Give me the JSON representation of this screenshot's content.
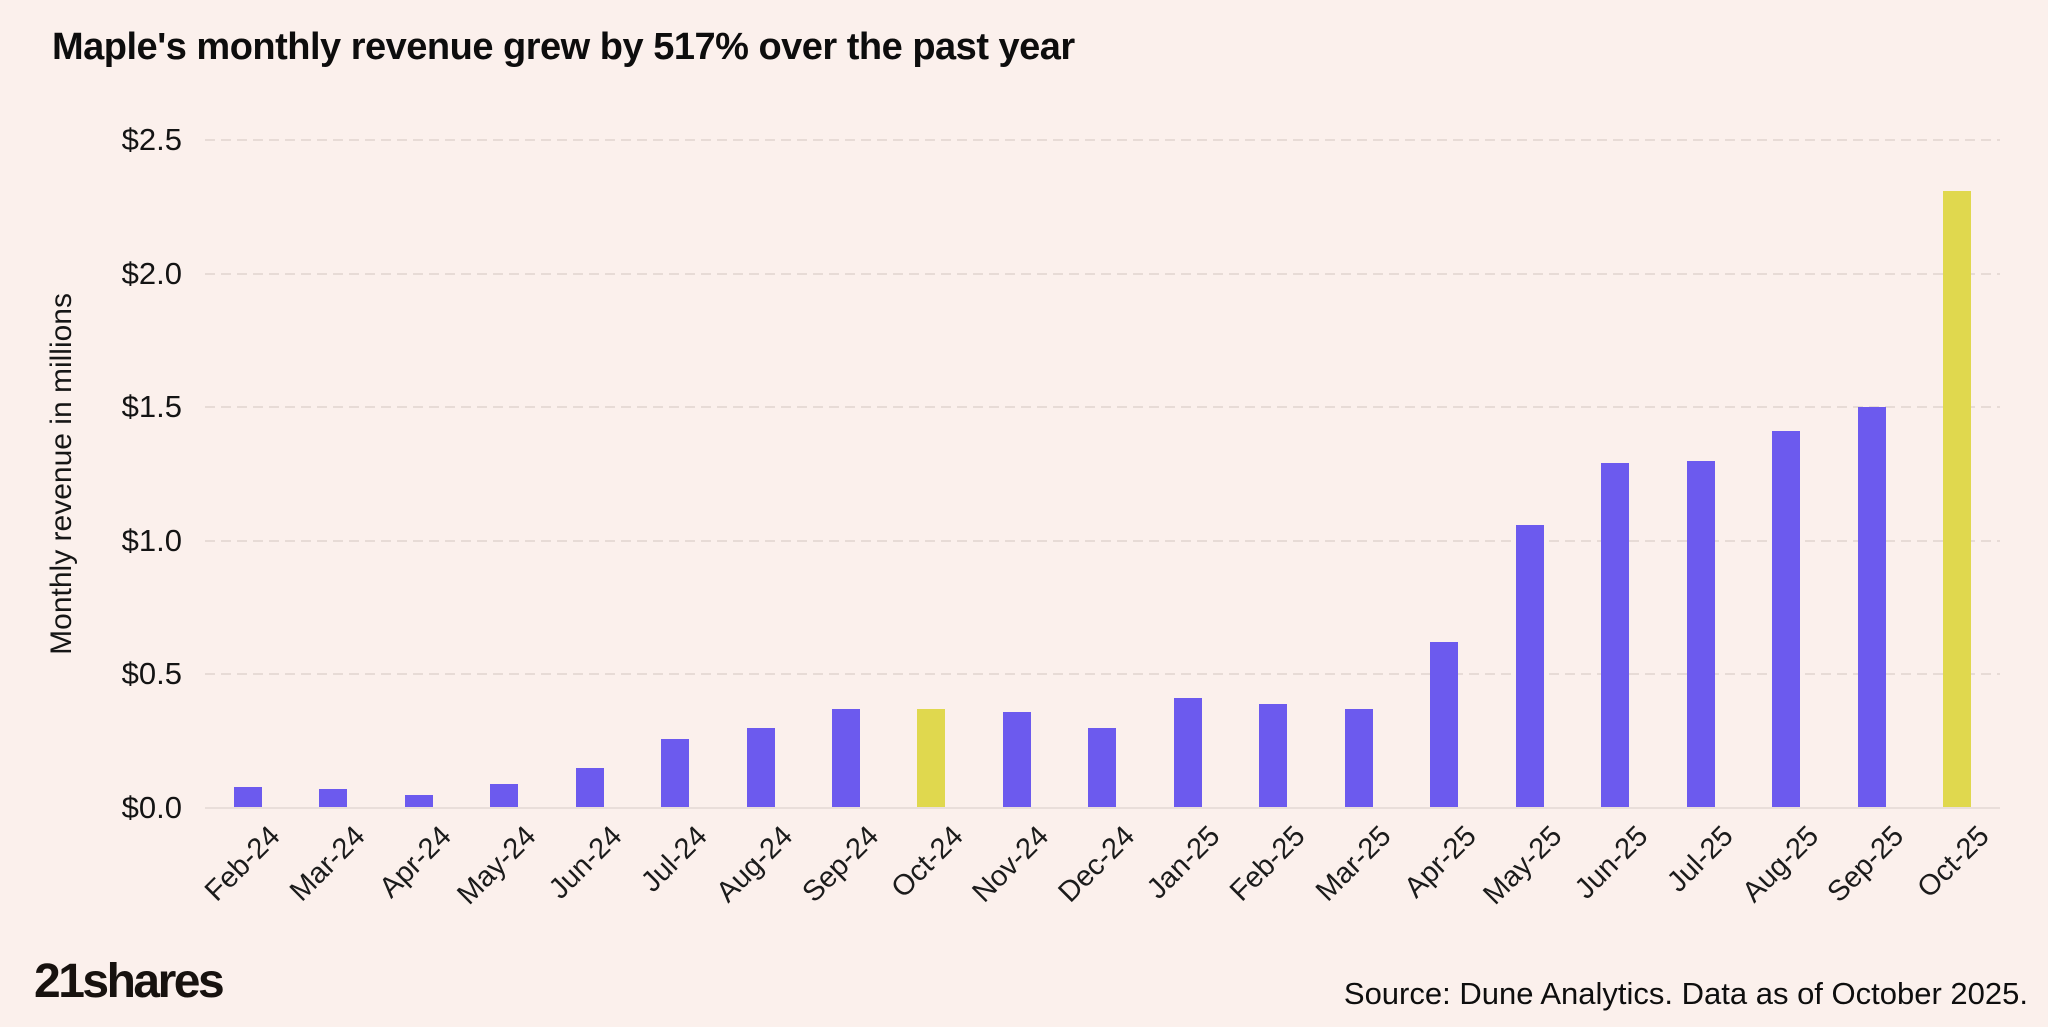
{
  "title": "Maple's monthly revenue grew by 517% over the past year",
  "chart_data": {
    "type": "bar",
    "title": "Maple's monthly revenue grew by 517% over the past year",
    "xlabel": "",
    "ylabel": "Monthly revenue in millions",
    "ylim": [
      0,
      2.5
    ],
    "grid": true,
    "gridline_style": "dashed-horizontal",
    "legend": "none",
    "categories": [
      "Feb-24",
      "Mar-24",
      "Apr-24",
      "May-24",
      "Jun-24",
      "Jul-24",
      "Aug-24",
      "Sep-24",
      "Oct-24",
      "Nov-24",
      "Dec-24",
      "Jan-25",
      "Feb-25",
      "Mar-25",
      "Apr-25",
      "May-25",
      "Jun-25",
      "Jul-25",
      "Aug-25",
      "Sep-25",
      "Oct-25"
    ],
    "values": [
      0.08,
      0.07,
      0.05,
      0.09,
      0.15,
      0.26,
      0.3,
      0.37,
      0.37,
      0.36,
      0.3,
      0.41,
      0.39,
      0.37,
      0.62,
      1.06,
      1.29,
      1.3,
      1.41,
      1.5,
      2.31
    ],
    "yticks": [
      {
        "label": "$0.0",
        "value": 0.0
      },
      {
        "label": "$0.5",
        "value": 0.5
      },
      {
        "label": "$1.0",
        "value": 1.0
      },
      {
        "label": "$1.5",
        "value": 1.5
      },
      {
        "label": "$2.0",
        "value": 2.0
      },
      {
        "label": "$2.5",
        "value": 2.5
      }
    ],
    "highlighted_categories": [
      "Oct-24",
      "Oct-25"
    ],
    "bar_color": "#6C5AEE",
    "highlight_color": "#E0D84E"
  },
  "colors": {
    "background": "#FBF0EC",
    "bar_purple": "#6C5AEE",
    "bar_yellow": "#E0D84E",
    "gridline": "#E7DBD6",
    "text": "#141414"
  },
  "footer": {
    "logo_text": "21shares",
    "source": "Source: Dune Analytics. Data as of October 2025."
  }
}
